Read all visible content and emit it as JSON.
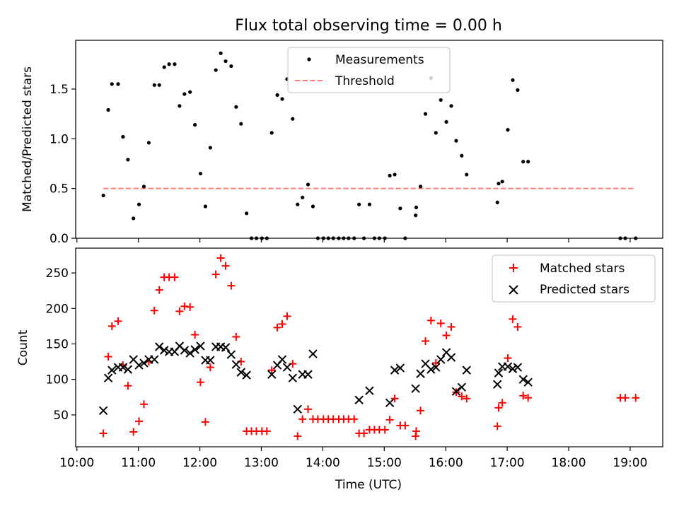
{
  "chart_data": [
    {
      "type": "scatter",
      "title": "Flux total observing time = 0.00 h",
      "xlabel": "",
      "ylabel": "Matched/Predicted stars",
      "xlim": [
        9.98,
        19.53
      ],
      "ylim": [
        0,
        1.99
      ],
      "yticks": [
        0.0,
        0.5,
        1.0,
        1.5
      ],
      "ytick_labels": [
        "0.0",
        "0.5",
        "1.0",
        "1.5"
      ],
      "xticks": [
        10,
        11,
        12,
        13,
        14,
        15,
        16,
        17,
        18,
        19
      ],
      "grid": false,
      "legend_position": "top-center",
      "series": [
        {
          "name": "Measurements",
          "style": "dot",
          "color": "#000000",
          "points": [
            [
              10.43,
              0.43
            ],
            [
              10.51,
              1.29
            ],
            [
              10.57,
              1.55
            ],
            [
              10.67,
              1.55
            ],
            [
              10.75,
              1.02
            ],
            [
              10.83,
              0.79
            ],
            [
              10.92,
              0.2
            ],
            [
              11.01,
              0.34
            ],
            [
              11.09,
              0.52
            ],
            [
              11.17,
              0.96
            ],
            [
              11.26,
              1.54
            ],
            [
              11.34,
              1.54
            ],
            [
              11.42,
              1.72
            ],
            [
              11.5,
              1.75
            ],
            [
              11.59,
              1.75
            ],
            [
              11.67,
              1.33
            ],
            [
              11.75,
              1.45
            ],
            [
              11.84,
              1.47
            ],
            [
              11.92,
              1.14
            ],
            [
              12.01,
              0.65
            ],
            [
              12.09,
              0.32
            ],
            [
              12.17,
              0.91
            ],
            [
              12.26,
              1.69
            ],
            [
              12.34,
              1.86
            ],
            [
              12.42,
              1.78
            ],
            [
              12.51,
              1.73
            ],
            [
              12.59,
              1.32
            ],
            [
              12.67,
              1.15
            ],
            [
              12.76,
              0.25
            ],
            [
              12.84,
              0.0
            ],
            [
              12.92,
              0.0
            ],
            [
              13.01,
              0.0
            ],
            [
              13.09,
              0.0
            ],
            [
              13.17,
              1.06
            ],
            [
              13.26,
              1.44
            ],
            [
              13.34,
              1.4
            ],
            [
              13.42,
              1.6
            ],
            [
              13.51,
              1.2
            ],
            [
              13.59,
              0.34
            ],
            [
              13.67,
              0.41
            ],
            [
              13.76,
              0.54
            ],
            [
              13.84,
              0.32
            ],
            [
              13.92,
              0.0
            ],
            [
              14.01,
              0.0
            ],
            [
              14.09,
              0.0
            ],
            [
              14.17,
              0.0
            ],
            [
              14.26,
              0.0
            ],
            [
              14.34,
              0.0
            ],
            [
              14.42,
              0.0
            ],
            [
              14.51,
              0.0
            ],
            [
              14.59,
              0.34
            ],
            [
              14.67,
              0.0
            ],
            [
              14.76,
              0.34
            ],
            [
              14.84,
              0.0
            ],
            [
              14.92,
              0.0
            ],
            [
              15.01,
              0.0
            ],
            [
              15.09,
              0.63
            ],
            [
              15.17,
              0.64
            ],
            [
              15.26,
              0.3
            ],
            [
              15.34,
              0.0
            ],
            [
              15.51,
              0.23
            ],
            [
              15.52,
              0.31
            ],
            [
              15.59,
              0.52
            ],
            [
              15.67,
              1.25
            ],
            [
              15.76,
              1.61
            ],
            [
              15.84,
              1.06
            ],
            [
              15.92,
              1.39
            ],
            [
              16.01,
              1.17
            ],
            [
              16.09,
              1.33
            ],
            [
              16.17,
              0.98
            ],
            [
              16.26,
              0.83
            ],
            [
              16.34,
              0.64
            ],
            [
              16.84,
              0.36
            ],
            [
              16.86,
              0.55
            ],
            [
              16.92,
              0.57
            ],
            [
              17.01,
              1.09
            ],
            [
              17.09,
              1.59
            ],
            [
              17.17,
              1.49
            ],
            [
              17.26,
              0.77
            ],
            [
              17.34,
              0.77
            ],
            [
              18.84,
              0.0
            ],
            [
              18.92,
              0.0
            ],
            [
              19.09,
              0.0
            ]
          ]
        },
        {
          "name": "Threshold",
          "style": "dashed-line",
          "color": "#ff7f7f",
          "points": [
            [
              10.43,
              0.5
            ],
            [
              19.09,
              0.5
            ]
          ]
        }
      ]
    },
    {
      "type": "scatter",
      "title": "",
      "xlabel": "Time (UTC)",
      "ylabel": "Count",
      "xlim": [
        9.98,
        19.53
      ],
      "ylim": [
        5,
        285
      ],
      "yticks": [
        50,
        100,
        150,
        200,
        250
      ],
      "ytick_labels": [
        "50",
        "100",
        "150",
        "200",
        "250"
      ],
      "xticks": [
        10,
        11,
        12,
        13,
        14,
        15,
        16,
        17,
        18,
        19
      ],
      "xtick_labels": [
        "10:00",
        "11:00",
        "12:00",
        "13:00",
        "14:00",
        "15:00",
        "16:00",
        "17:00",
        "18:00",
        "19:00"
      ],
      "grid": false,
      "legend_position": "top-right",
      "series": [
        {
          "name": "Matched stars",
          "style": "plus",
          "color": "#ff0000",
          "points": [
            [
              10.43,
              24
            ],
            [
              10.51,
              132
            ],
            [
              10.57,
              175
            ],
            [
              10.67,
              182
            ],
            [
              10.75,
              120
            ],
            [
              10.83,
              91
            ],
            [
              10.92,
              26
            ],
            [
              11.01,
              41
            ],
            [
              11.09,
              65
            ],
            [
              11.17,
              125
            ],
            [
              11.26,
              197
            ],
            [
              11.34,
              226
            ],
            [
              11.42,
              244
            ],
            [
              11.5,
              244
            ],
            [
              11.59,
              244
            ],
            [
              11.67,
              196
            ],
            [
              11.75,
              203
            ],
            [
              11.84,
              202
            ],
            [
              11.92,
              163
            ],
            [
              12.01,
              96
            ],
            [
              12.09,
              40
            ],
            [
              12.17,
              117
            ],
            [
              12.26,
              248
            ],
            [
              12.34,
              271
            ],
            [
              12.42,
              260
            ],
            [
              12.51,
              232
            ],
            [
              12.59,
              160
            ],
            [
              12.67,
              125
            ],
            [
              12.76,
              27
            ],
            [
              12.84,
              27
            ],
            [
              12.92,
              27
            ],
            [
              13.01,
              27
            ],
            [
              13.09,
              27
            ],
            [
              13.17,
              113
            ],
            [
              13.26,
              173
            ],
            [
              13.34,
              178
            ],
            [
              13.42,
              189
            ],
            [
              13.51,
              122
            ],
            [
              13.59,
              20
            ],
            [
              13.67,
              44
            ],
            [
              13.76,
              58
            ],
            [
              13.84,
              44
            ],
            [
              13.92,
              44
            ],
            [
              14.01,
              44
            ],
            [
              14.09,
              44
            ],
            [
              14.17,
              44
            ],
            [
              14.26,
              44
            ],
            [
              14.34,
              44
            ],
            [
              14.42,
              44
            ],
            [
              14.51,
              44
            ],
            [
              14.59,
              24
            ],
            [
              14.67,
              24
            ],
            [
              14.76,
              29
            ],
            [
              14.84,
              29
            ],
            [
              14.92,
              29
            ],
            [
              15.01,
              29
            ],
            [
              15.09,
              43
            ],
            [
              15.17,
              73
            ],
            [
              15.26,
              35
            ],
            [
              15.34,
              35
            ],
            [
              15.51,
              20
            ],
            [
              15.52,
              27
            ],
            [
              15.59,
              56
            ],
            [
              15.67,
              154
            ],
            [
              15.76,
              183
            ],
            [
              15.84,
              123
            ],
            [
              15.92,
              179
            ],
            [
              16.01,
              162
            ],
            [
              16.09,
              174
            ],
            [
              16.17,
              82
            ],
            [
              16.26,
              76
            ],
            [
              16.34,
              73
            ],
            [
              16.84,
              34
            ],
            [
              16.86,
              60
            ],
            [
              16.92,
              67
            ],
            [
              17.01,
              130
            ],
            [
              17.09,
              185
            ],
            [
              17.17,
              174
            ],
            [
              17.26,
              77
            ],
            [
              17.34,
              74
            ],
            [
              18.84,
              74
            ],
            [
              18.92,
              74
            ],
            [
              19.09,
              74
            ]
          ]
        },
        {
          "name": "Predicted stars",
          "style": "x",
          "color": "#000000",
          "points": [
            [
              10.43,
              56
            ],
            [
              10.51,
              102
            ],
            [
              10.57,
              113
            ],
            [
              10.67,
              117
            ],
            [
              10.75,
              117
            ],
            [
              10.83,
              114
            ],
            [
              10.92,
              128
            ],
            [
              11.01,
              120
            ],
            [
              11.09,
              123
            ],
            [
              11.17,
              128
            ],
            [
              11.26,
              128
            ],
            [
              11.34,
              146
            ],
            [
              11.42,
              141
            ],
            [
              11.5,
              139
            ],
            [
              11.59,
              139
            ],
            [
              11.67,
              147
            ],
            [
              11.75,
              141
            ],
            [
              11.84,
              137
            ],
            [
              11.92,
              142
            ],
            [
              12.01,
              147
            ],
            [
              12.09,
              127
            ],
            [
              12.17,
              127
            ],
            [
              12.26,
              146
            ],
            [
              12.34,
              146
            ],
            [
              12.42,
              145
            ],
            [
              12.51,
              135
            ],
            [
              12.59,
              121
            ],
            [
              12.67,
              110
            ],
            [
              12.76,
              106
            ],
            [
              13.17,
              107
            ],
            [
              13.26,
              120
            ],
            [
              13.34,
              128
            ],
            [
              13.42,
              117
            ],
            [
              13.51,
              102
            ],
            [
              13.59,
              58
            ],
            [
              13.67,
              107
            ],
            [
              13.76,
              107
            ],
            [
              13.84,
              136
            ],
            [
              14.59,
              71
            ],
            [
              14.76,
              84
            ],
            [
              15.09,
              67
            ],
            [
              15.17,
              113
            ],
            [
              15.26,
              116
            ],
            [
              15.51,
              87
            ],
            [
              15.59,
              108
            ],
            [
              15.67,
              122
            ],
            [
              15.76,
              114
            ],
            [
              15.84,
              117
            ],
            [
              15.92,
              128
            ],
            [
              16.01,
              138
            ],
            [
              16.09,
              131
            ],
            [
              16.17,
              83
            ],
            [
              16.26,
              89
            ],
            [
              16.34,
              113
            ],
            [
              16.84,
              93
            ],
            [
              16.86,
              109
            ],
            [
              16.92,
              118
            ],
            [
              17.01,
              118
            ],
            [
              17.09,
              115
            ],
            [
              17.17,
              117
            ],
            [
              17.26,
              100
            ],
            [
              17.34,
              96
            ]
          ]
        }
      ]
    }
  ]
}
